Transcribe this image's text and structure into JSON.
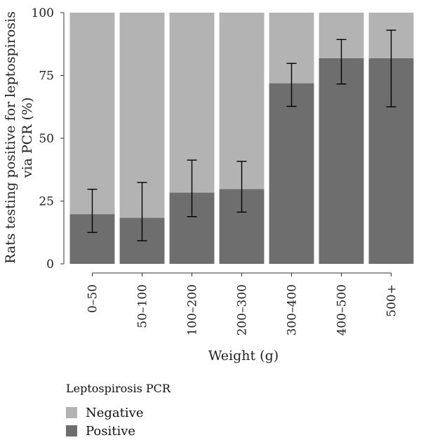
{
  "chart_data": {
    "type": "bar",
    "stacked": true,
    "categories": [
      "0–50",
      "50–100",
      "100–200",
      "200–300",
      "300–400",
      "400–500",
      "500+"
    ],
    "series": [
      {
        "name": "Positive",
        "values": [
          19.8,
          18.3,
          28.4,
          29.8,
          71.9,
          81.9,
          81.9
        ],
        "color": "#6e6e6e"
      },
      {
        "name": "Negative",
        "values": [
          80.2,
          81.7,
          71.6,
          70.2,
          28.1,
          18.1,
          18.1
        ],
        "color": "#b3b3b3"
      }
    ],
    "error_bars": {
      "series": "Positive",
      "lower": [
        12.5,
        9.2,
        18.8,
        20.6,
        62.7,
        71.6,
        62.5
      ],
      "upper": [
        29.7,
        32.4,
        41.3,
        40.8,
        79.8,
        89.3,
        93.0
      ]
    },
    "xlabel": "Weight (g)",
    "ylabel_lines": [
      "Rats testing positive for leptospirosis",
      "via PCR (%)"
    ],
    "yticks": [
      0,
      25,
      50,
      75,
      100
    ],
    "ylim": [
      0,
      100
    ],
    "grid": false
  },
  "legend": {
    "title": "Leptospirosis PCR",
    "items": [
      {
        "label": "Negative",
        "color": "#b3b3b3"
      },
      {
        "label": "Positive",
        "color": "#6e6e6e"
      }
    ]
  }
}
